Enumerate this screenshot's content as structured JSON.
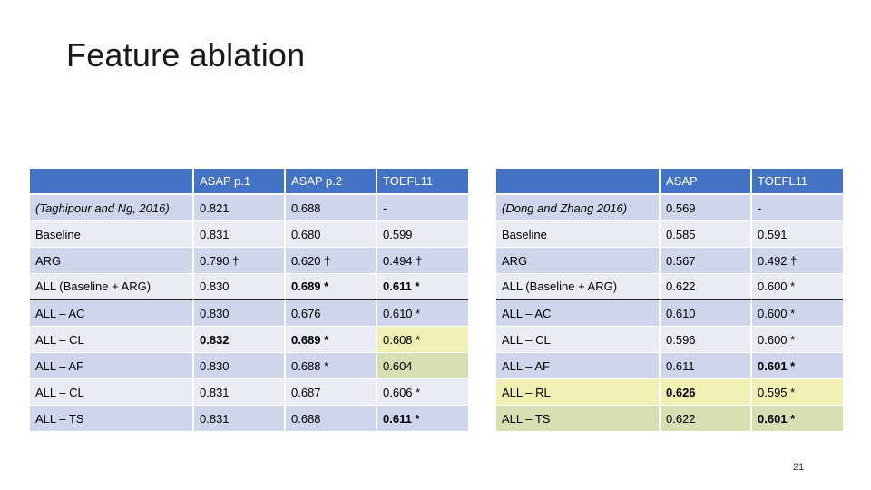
{
  "slide": {
    "title": "Feature ablation",
    "page_number": "21"
  },
  "table1": {
    "headers": [
      "",
      "ASAP p.1",
      "ASAP p.2",
      "TOEFL11"
    ],
    "rows": [
      [
        "(Taghipour and Ng, 2016)",
        "0.821",
        "0.688",
        "-"
      ],
      [
        "Baseline",
        "0.831",
        "0.680",
        "0.599"
      ],
      [
        "ARG",
        "0.790 †",
        "0.620 †",
        "0.494 †"
      ],
      [
        "ALL (Baseline + ARG)",
        "0.830",
        "0.689 *",
        "0.611 *"
      ],
      [
        "ALL – AC",
        "0.830",
        "0.676",
        "0.610 *"
      ],
      [
        "ALL – CL",
        "0.832",
        "0.689 *",
        "0.608 *"
      ],
      [
        "ALL – AF",
        "0.830",
        "0.688 *",
        "0.604"
      ],
      [
        "ALL – CL",
        "0.831",
        "0.687",
        "0.606 *"
      ],
      [
        "ALL – TS",
        "0.831",
        "0.688",
        "0.611 *"
      ]
    ]
  },
  "table2": {
    "headers": [
      "",
      "ASAP",
      "TOEFL11"
    ],
    "rows": [
      [
        "(Dong and Zhang 2016)",
        "0.569",
        "-"
      ],
      [
        "Baseline",
        "0.585",
        "0.591"
      ],
      [
        "ARG",
        "0.567",
        "0.492 †"
      ],
      [
        "ALL (Baseline + ARG)",
        "0.622",
        "0.600 *"
      ],
      [
        "ALL – AC",
        "0.610",
        "0.600 *"
      ],
      [
        "ALL – CL",
        "0.596",
        "0.600 *"
      ],
      [
        "ALL – AF",
        "0.611",
        "0.601 *"
      ],
      [
        "ALL – RL",
        "0.626",
        "0.595 *"
      ],
      [
        "ALL – TS",
        "0.622",
        "0.601 *"
      ]
    ]
  },
  "colors": {
    "header_bg": "#4472c4",
    "row_odd": "#cfd5ea",
    "row_even": "#e9ebf5",
    "highlight_yellow": "#f0f0b4",
    "highlight_green": "#d7dfb2"
  }
}
